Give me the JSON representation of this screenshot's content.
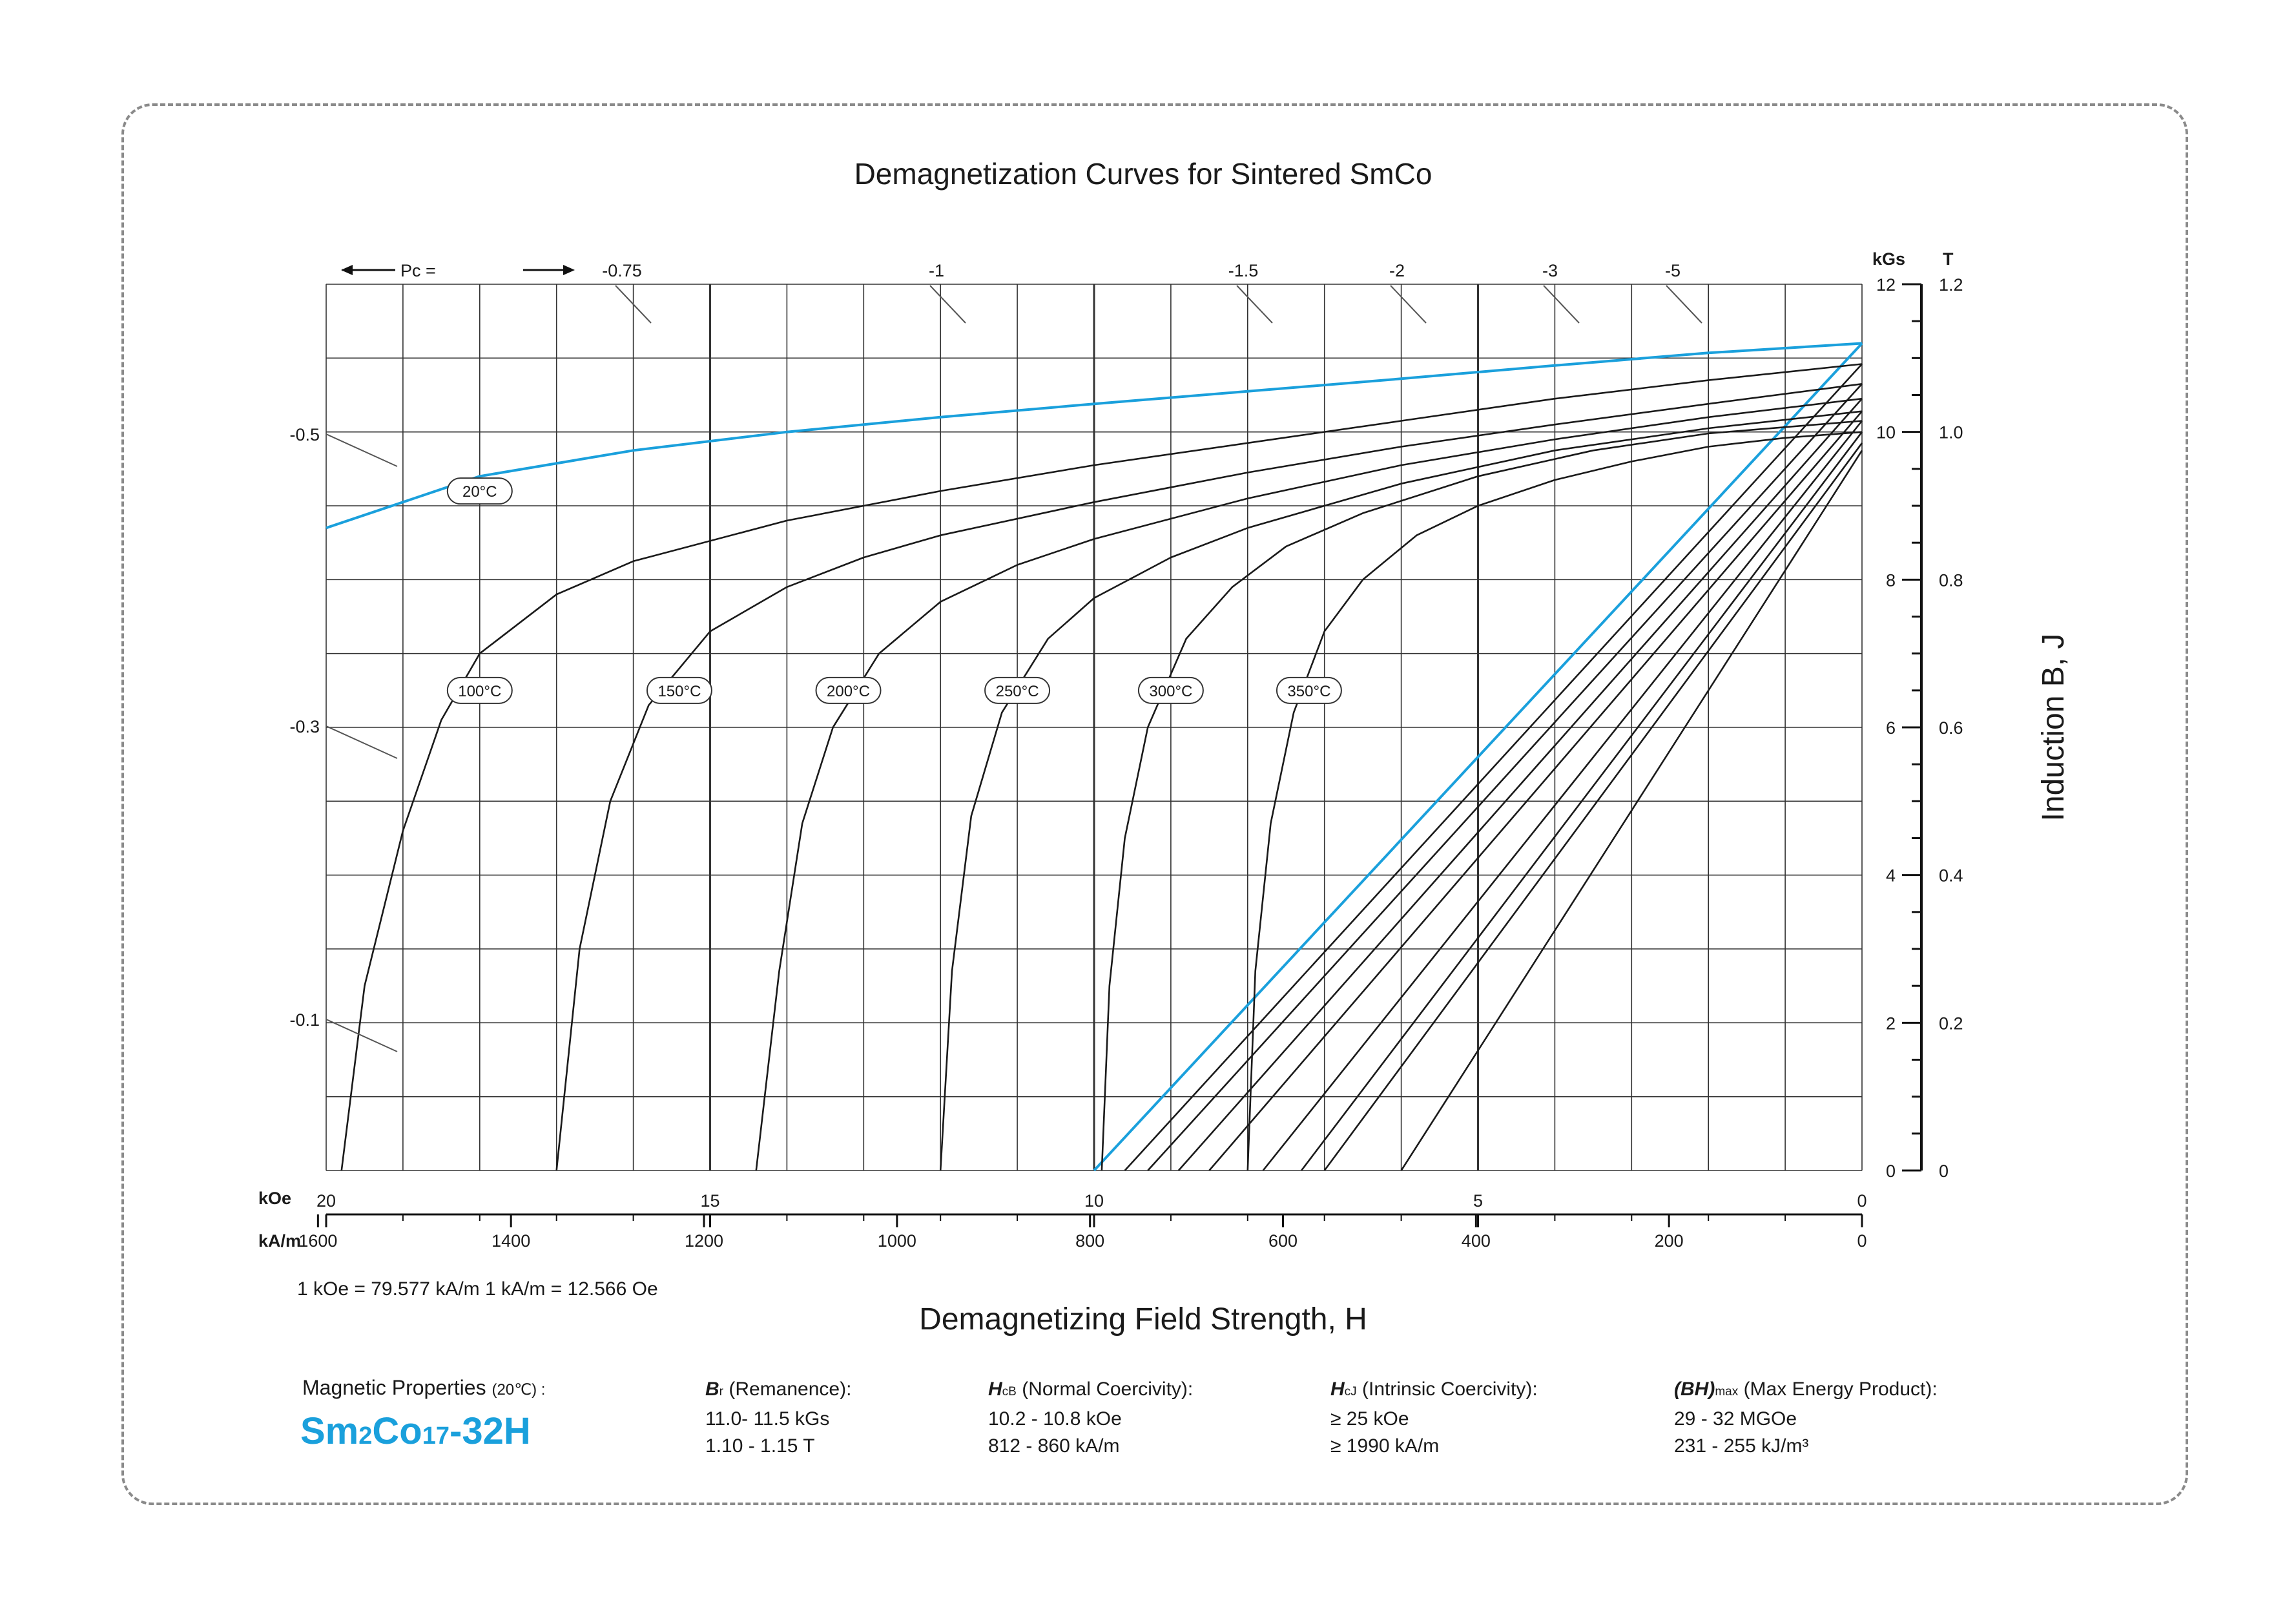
{
  "chart_data": {
    "type": "line",
    "title": "Demagnetization Curves for Sintered SmCo",
    "xlabel": "Demagnetizing Field Strength, H",
    "ylabel": "Induction B, J",
    "x_units": [
      "kOe",
      "kA/m"
    ],
    "y_units": [
      "kGs",
      "T"
    ],
    "xlim_kOe": [
      20,
      0
    ],
    "ylim_kGs": [
      0,
      12
    ],
    "x_ticks_kOe": [
      "20",
      "15",
      "10",
      "5",
      "0"
    ],
    "x_ticks_kAm": [
      "1600",
      "1400",
      "1200",
      "1000",
      "800",
      "600",
      "400",
      "200",
      "0"
    ],
    "y_ticks_kGs": [
      "0",
      "2",
      "4",
      "6",
      "8",
      "10",
      "12"
    ],
    "y_ticks_T": [
      "0",
      "0.2",
      "0.4",
      "0.6",
      "0.8",
      "1.0",
      "1.2"
    ],
    "pc_top_label": "Pc =",
    "pc_top_ticks": [
      "-0.75",
      "-1",
      "-1.5",
      "-2",
      "-3",
      "-5"
    ],
    "pc_left_ticks": [
      "-0.5",
      "-0.3",
      "-0.1"
    ],
    "grid": true,
    "conversion_note": "1 kOe = 79.577 kA/m   1 kA/m = 12.566 Oe",
    "series": [
      {
        "name": "20°C",
        "kind": "J",
        "color": "#1aa0dc",
        "x": [
          20,
          18,
          16,
          14,
          12,
          10,
          8,
          6,
          4,
          2,
          0
        ],
        "y": [
          8.7,
          9.4,
          9.75,
          10.0,
          10.2,
          10.38,
          10.55,
          10.72,
          10.9,
          11.07,
          11.2
        ]
      },
      {
        "name": "20°C",
        "kind": "B",
        "color": "#1aa0dc",
        "x": [
          10.0,
          0
        ],
        "y": [
          0,
          11.2
        ]
      },
      {
        "name": "100°C",
        "kind": "J",
        "color": "#1a1a1a",
        "x": [
          19.8,
          19.5,
          19.0,
          18.5,
          18.0,
          17.0,
          16.0,
          14.0,
          12.0,
          10.0,
          8.0,
          6.0,
          4.0,
          2.0,
          0
        ],
        "y": [
          0,
          2.5,
          4.6,
          6.1,
          7.0,
          7.8,
          8.25,
          8.8,
          9.2,
          9.55,
          9.85,
          10.15,
          10.45,
          10.7,
          10.92
        ]
      },
      {
        "name": "100°C",
        "kind": "B",
        "color": "#1a1a1a",
        "x": [
          9.6,
          0
        ],
        "y": [
          0,
          10.92
        ]
      },
      {
        "name": "150°C",
        "kind": "J",
        "color": "#1a1a1a",
        "x": [
          17.0,
          16.7,
          16.3,
          15.8,
          15.0,
          14.0,
          13.0,
          12.0,
          10.0,
          8.0,
          6.0,
          4.0,
          2.0,
          0
        ],
        "y": [
          0,
          3.0,
          5.0,
          6.3,
          7.3,
          7.9,
          8.3,
          8.6,
          9.05,
          9.45,
          9.8,
          10.1,
          10.38,
          10.65
        ]
      },
      {
        "name": "150°C",
        "kind": "B",
        "color": "#1a1a1a",
        "x": [
          9.3,
          0
        ],
        "y": [
          0,
          10.65
        ]
      },
      {
        "name": "200°C",
        "kind": "J",
        "color": "#1a1a1a",
        "x": [
          14.4,
          14.1,
          13.8,
          13.4,
          12.8,
          12.0,
          11.0,
          10.0,
          8.0,
          6.0,
          4.0,
          2.0,
          0
        ],
        "y": [
          0,
          2.7,
          4.7,
          6.0,
          7.0,
          7.7,
          8.2,
          8.55,
          9.1,
          9.55,
          9.9,
          10.2,
          10.45
        ]
      },
      {
        "name": "200°C",
        "kind": "B",
        "color": "#1a1a1a",
        "x": [
          8.9,
          0
        ],
        "y": [
          0,
          10.45
        ]
      },
      {
        "name": "250°C",
        "kind": "J",
        "color": "#1a1a1a",
        "x": [
          12.0,
          11.85,
          11.6,
          11.2,
          10.6,
          10.0,
          9.0,
          8.0,
          6.0,
          4.0,
          2.0,
          0
        ],
        "y": [
          0,
          2.7,
          4.8,
          6.2,
          7.2,
          7.75,
          8.3,
          8.7,
          9.3,
          9.75,
          10.05,
          10.28
        ]
      },
      {
        "name": "250°C",
        "kind": "B",
        "color": "#1a1a1a",
        "x": [
          8.5,
          0
        ],
        "y": [
          0,
          10.28
        ]
      },
      {
        "name": "300°C",
        "kind": "J",
        "color": "#1a1a1a",
        "x": [
          9.9,
          9.8,
          9.6,
          9.3,
          8.8,
          8.2,
          7.5,
          6.5,
          5.0,
          3.5,
          2.0,
          0
        ],
        "y": [
          0,
          2.5,
          4.5,
          6.0,
          7.2,
          7.9,
          8.45,
          8.9,
          9.4,
          9.75,
          9.98,
          10.15
        ]
      },
      {
        "name": "300°C",
        "kind": "B",
        "color": "#1a1a1a",
        "x": [
          7.8,
          0
        ],
        "y": [
          0,
          10.15
        ]
      },
      {
        "name": "350°C",
        "kind": "J",
        "color": "#1a1a1a",
        "x": [
          8.0,
          7.9,
          7.7,
          7.4,
          7.0,
          6.5,
          5.8,
          5.0,
          4.0,
          3.0,
          2.0,
          1.0,
          0
        ],
        "y": [
          0,
          2.7,
          4.7,
          6.2,
          7.3,
          8.0,
          8.6,
          9.0,
          9.35,
          9.6,
          9.8,
          9.92,
          10.0
        ]
      },
      {
        "name": "350°C",
        "kind": "B",
        "color": "#1a1a1a",
        "x": [
          7.3,
          0
        ],
        "y": [
          0,
          10.0
        ]
      },
      {
        "name": "",
        "kind": "B",
        "color": "#1a1a1a",
        "x": [
          7.0,
          0
        ],
        "y": [
          0,
          9.85
        ]
      },
      {
        "name": "",
        "kind": "B",
        "color": "#1a1a1a",
        "x": [
          6.0,
          0
        ],
        "y": [
          0,
          9.75
        ]
      }
    ]
  },
  "curve_labels": [
    {
      "text": "20°C",
      "x": 18.0,
      "y": 9.2
    },
    {
      "text": "100°C",
      "x": 18.0,
      "y": 6.5
    },
    {
      "text": "150°C",
      "x": 15.4,
      "y": 6.5
    },
    {
      "text": "200°C",
      "x": 13.2,
      "y": 6.5
    },
    {
      "text": "250°C",
      "x": 11.0,
      "y": 6.5
    },
    {
      "text": "300°C",
      "x": 9.0,
      "y": 6.5
    },
    {
      "text": "350°C",
      "x": 7.2,
      "y": 6.5
    }
  ],
  "properties": {
    "heading": "Magnetic Properties",
    "heading_note": "(20℃) :",
    "grade": "Sm2Co17-32H",
    "br": {
      "symbol": "B",
      "sub": "r",
      "label": "(Remanence):",
      "v1": "11.0- 11.5 kGs",
      "v2": "1.10 - 1.15 T"
    },
    "hcb": {
      "symbol": "H",
      "sub": "cB",
      "label": "(Normal Coercivity):",
      "v1": "10.2 - 10.8 kOe",
      "v2": "812 - 860 kA/m"
    },
    "hcj": {
      "symbol": "H",
      "sub": "cJ",
      "label": "(Intrinsic Coercivity):",
      "v1": "≥ 25 kOe",
      "v2": "≥ 1990 kA/m"
    },
    "bh": {
      "symbol": "(BH)",
      "sub": "max",
      "label": "(Max Energy Product):",
      "v1": "29 - 32 MGOe",
      "v2": "231 - 255 kJ/m³"
    }
  }
}
